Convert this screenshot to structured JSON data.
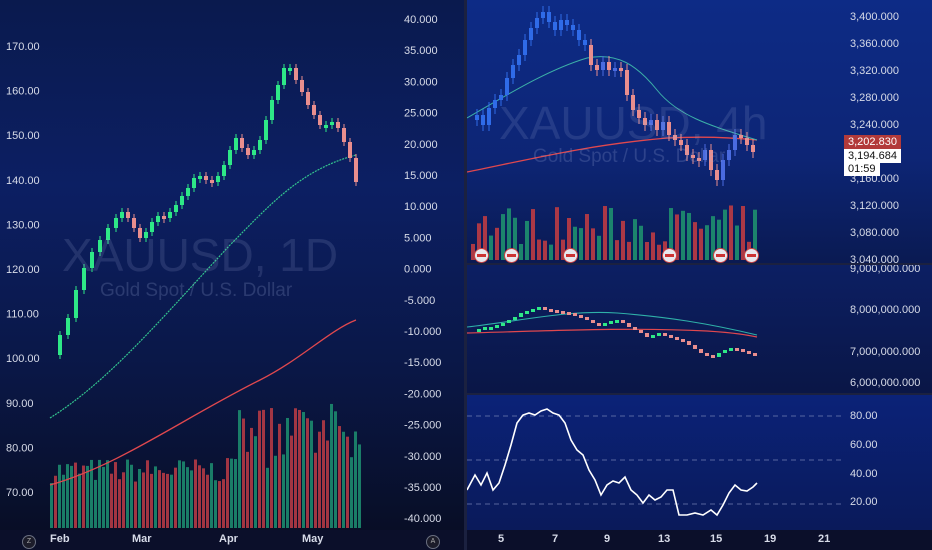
{
  "left_chart": {
    "watermark_symbol": "XAUUSD, 1D",
    "watermark_name": "Gold Spot / U.S. Dollar",
    "left_axis_labels": [
      "170.00",
      "160.00",
      "150.00",
      "140.00",
      "130.00",
      "120.00",
      "110.00",
      "100.00",
      "90.00",
      "80.00",
      "70.00"
    ],
    "right_axis_labels": [
      "40.000",
      "35.000",
      "30.000",
      "25.000",
      "20.000",
      "15.000",
      "10.000",
      "5.000",
      "0.000",
      "-5.000",
      "-10.000",
      "-15.000",
      "-20.000",
      "-25.000",
      "-30.000",
      "-35.000",
      "-40.000"
    ],
    "x_labels": [
      "Feb",
      "Mar",
      "Apr",
      "May"
    ],
    "corner_left_icon": "Z",
    "corner_right_icon": "A"
  },
  "right_top_chart": {
    "watermark_symbol": "XAUUSD, 4h",
    "watermark_name": "Gold Spot / U.S. Dollar",
    "axis_labels": [
      "3,400.000",
      "3,360.000",
      "3,320.000",
      "3,280.000",
      "3,240.000",
      "3,160.000",
      "3,120.000",
      "3,080.000",
      "3,040.000"
    ],
    "last_price": "3,202.830",
    "current_price": "3,194.684",
    "countdown": "01:59"
  },
  "right_mid_chart": {
    "axis_labels": [
      "9,000,000.000",
      "8,000,000.000",
      "7,000,000.000",
      "6,000,000.000"
    ]
  },
  "right_bot_chart": {
    "axis_labels": [
      "80.00",
      "60.00",
      "40.00",
      "20.00"
    ]
  },
  "right_x_labels": [
    "5",
    "7",
    "9",
    "13",
    "15",
    "19",
    "21"
  ],
  "colors": {
    "up": "#2ee887",
    "down": "#e98e8e",
    "vol_up": "#1d8a6e",
    "vol_down": "#b43a45",
    "ma_red": "#e0484e",
    "ma_green": "#33c48e",
    "price_tag": "#b23a3a"
  }
}
